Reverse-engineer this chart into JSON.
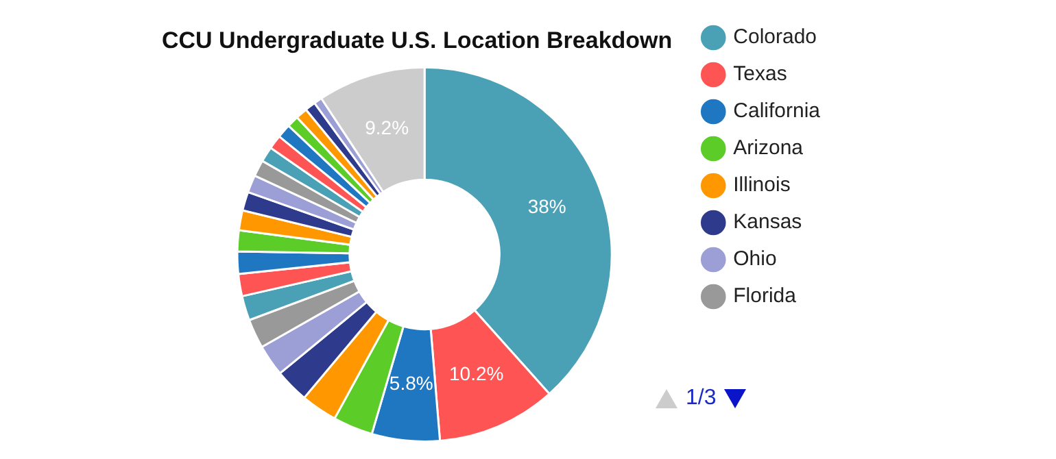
{
  "chart_data": {
    "type": "donut",
    "title": "CCU Undergraduate U.S. Location Breakdown",
    "categories": [
      "Colorado",
      "Texas",
      "California",
      "Arizona",
      "Illinois",
      "Kansas",
      "Ohio",
      "Florida",
      null,
      null,
      null,
      null,
      null,
      null,
      null,
      null,
      null,
      null,
      null,
      null,
      null,
      null,
      null,
      null
    ],
    "values": [
      38,
      10.2,
      5.8,
      3.4,
      3.1,
      2.9,
      2.7,
      2.5,
      2.1,
      1.9,
      1.9,
      1.8,
      1.7,
      1.6,
      1.5,
      1.4,
      1.3,
      1.2,
      1.2,
      1.0,
      1.0,
      0.9,
      0.7,
      9.2
    ],
    "colors": [
      "#4aa0b5",
      "#fe5454",
      "#1f77c1",
      "#5bcc28",
      "#ff9800",
      "#2e3a8c",
      "#9c9ed6",
      "#999999",
      "#4aa0b5",
      "#fe5454",
      "#1f77c1",
      "#5bcc28",
      "#ff9800",
      "#2e3a8c",
      "#9c9ed6",
      "#999999",
      "#4aa0b5",
      "#fe5454",
      "#1f77c1",
      "#5bcc28",
      "#ff9800",
      "#2e3a8c",
      "#9c9ed6",
      "#cccccc"
    ],
    "value_labels": [
      "38%",
      "10.2%",
      "5.8%",
      null,
      null,
      null,
      null,
      null,
      null,
      null,
      null,
      null,
      null,
      null,
      null,
      null,
      null,
      null,
      null,
      null,
      null,
      null,
      null,
      "9.2%"
    ],
    "legend": "right",
    "annotations": [
      "1/3"
    ]
  }
}
